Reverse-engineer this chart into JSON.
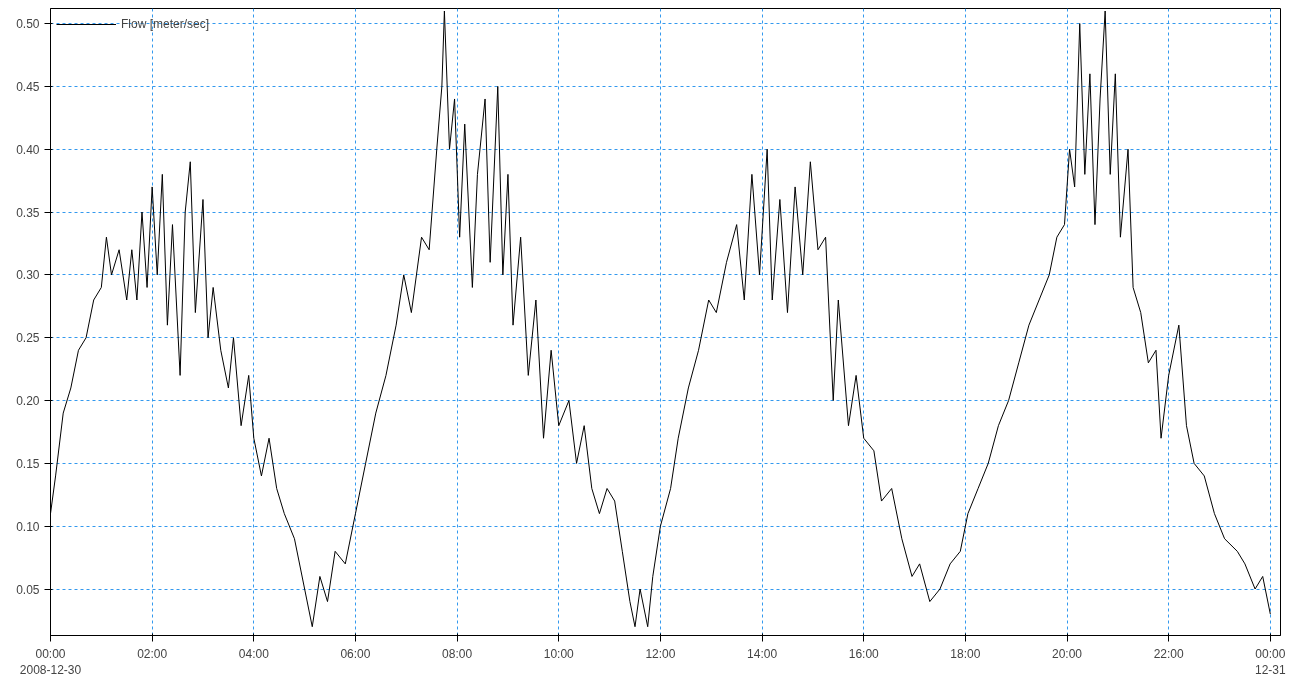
{
  "chart_data": {
    "type": "line",
    "xlim": [
      0,
      24.2
    ],
    "ylim": [
      0.013,
      0.512
    ],
    "xticks": [
      {
        "value": 0,
        "label": "00:00\n2008-12-30"
      },
      {
        "value": 2,
        "label": "02:00"
      },
      {
        "value": 4,
        "label": "04:00"
      },
      {
        "value": 6,
        "label": "06:00"
      },
      {
        "value": 8,
        "label": "08:00"
      },
      {
        "value": 10,
        "label": "10:00"
      },
      {
        "value": 12,
        "label": "12:00"
      },
      {
        "value": 14,
        "label": "14:00"
      },
      {
        "value": 16,
        "label": "16:00"
      },
      {
        "value": 18,
        "label": "18:00"
      },
      {
        "value": 20,
        "label": "20:00"
      },
      {
        "value": 22,
        "label": "22:00"
      },
      {
        "value": 24,
        "label": "00:00\n12-31"
      }
    ],
    "yticks": [
      {
        "value": 0.05,
        "label": "0.05"
      },
      {
        "value": 0.1,
        "label": "0.10"
      },
      {
        "value": 0.15,
        "label": "0.15"
      },
      {
        "value": 0.2,
        "label": "0.20"
      },
      {
        "value": 0.25,
        "label": "0.25"
      },
      {
        "value": 0.3,
        "label": "0.30"
      },
      {
        "value": 0.35,
        "label": "0.35"
      },
      {
        "value": 0.4,
        "label": "0.40"
      },
      {
        "value": 0.45,
        "label": "0.45"
      },
      {
        "value": 0.5,
        "label": "0.50"
      }
    ],
    "grid": true,
    "legend": "top left",
    "line_style": "solid",
    "marker": "none",
    "series": [
      {
        "name": "Flow [meter/sec]",
        "color": "#000000",
        "x": [
          0,
          0.1,
          0.25,
          0.4,
          0.55,
          0.7,
          0.85,
          1.0,
          1.1,
          1.2,
          1.35,
          1.5,
          1.6,
          1.7,
          1.8,
          1.9,
          2.0,
          2.1,
          2.2,
          2.3,
          2.4,
          2.55,
          2.65,
          2.75,
          2.85,
          3.0,
          3.1,
          3.2,
          3.35,
          3.5,
          3.6,
          3.75,
          3.9,
          4.0,
          4.15,
          4.3,
          4.45,
          4.6,
          4.8,
          5.0,
          5.15,
          5.3,
          5.45,
          5.6,
          5.8,
          6.0,
          6.2,
          6.4,
          6.6,
          6.8,
          6.95,
          7.1,
          7.3,
          7.45,
          7.6,
          7.7,
          7.75,
          7.85,
          7.95,
          8.05,
          8.15,
          8.3,
          8.4,
          8.55,
          8.65,
          8.8,
          8.9,
          9.0,
          9.1,
          9.25,
          9.4,
          9.55,
          9.7,
          9.85,
          10.0,
          10.2,
          10.35,
          10.5,
          10.65,
          10.8,
          10.95,
          11.1,
          11.25,
          11.4,
          11.5,
          11.6,
          11.75,
          11.85,
          12.0,
          12.2,
          12.35,
          12.55,
          12.75,
          12.95,
          13.1,
          13.3,
          13.5,
          13.65,
          13.8,
          13.95,
          14.1,
          14.2,
          14.35,
          14.5,
          14.65,
          14.8,
          14.95,
          15.1,
          15.25,
          15.4,
          15.5,
          15.7,
          15.85,
          16.0,
          16.2,
          16.35,
          16.55,
          16.75,
          16.95,
          17.1,
          17.3,
          17.5,
          17.7,
          17.9,
          18.05,
          18.25,
          18.45,
          18.65,
          18.85,
          19.05,
          19.25,
          19.45,
          19.65,
          19.8,
          19.95,
          20.05,
          20.15,
          20.25,
          20.35,
          20.45,
          20.55,
          20.65,
          20.75,
          20.85,
          20.95,
          21.05,
          21.2,
          21.3,
          21.45,
          21.6,
          21.75,
          21.85,
          22.0,
          22.2,
          22.35,
          22.5,
          22.7,
          22.9,
          23.1,
          23.35,
          23.5,
          23.7,
          23.85,
          24.0
        ],
        "values": [
          0.11,
          0.14,
          0.19,
          0.21,
          0.24,
          0.25,
          0.28,
          0.29,
          0.33,
          0.3,
          0.32,
          0.28,
          0.32,
          0.28,
          0.35,
          0.29,
          0.37,
          0.3,
          0.38,
          0.26,
          0.34,
          0.22,
          0.35,
          0.39,
          0.27,
          0.36,
          0.25,
          0.29,
          0.24,
          0.21,
          0.25,
          0.18,
          0.22,
          0.17,
          0.14,
          0.17,
          0.13,
          0.11,
          0.09,
          0.05,
          0.02,
          0.06,
          0.04,
          0.08,
          0.07,
          0.11,
          0.15,
          0.19,
          0.22,
          0.26,
          0.3,
          0.27,
          0.33,
          0.32,
          0.4,
          0.45,
          0.51,
          0.4,
          0.44,
          0.33,
          0.42,
          0.29,
          0.38,
          0.44,
          0.31,
          0.45,
          0.3,
          0.38,
          0.26,
          0.33,
          0.22,
          0.28,
          0.17,
          0.24,
          0.18,
          0.2,
          0.15,
          0.18,
          0.13,
          0.11,
          0.13,
          0.12,
          0.08,
          0.04,
          0.02,
          0.05,
          0.02,
          0.06,
          0.1,
          0.13,
          0.17,
          0.21,
          0.24,
          0.28,
          0.27,
          0.31,
          0.34,
          0.28,
          0.38,
          0.3,
          0.4,
          0.28,
          0.36,
          0.27,
          0.37,
          0.3,
          0.39,
          0.32,
          0.33,
          0.2,
          0.28,
          0.18,
          0.22,
          0.17,
          0.16,
          0.12,
          0.13,
          0.09,
          0.06,
          0.07,
          0.04,
          0.05,
          0.07,
          0.08,
          0.11,
          0.13,
          0.15,
          0.18,
          0.2,
          0.23,
          0.26,
          0.28,
          0.3,
          0.33,
          0.34,
          0.4,
          0.37,
          0.5,
          0.38,
          0.46,
          0.34,
          0.44,
          0.51,
          0.38,
          0.46,
          0.33,
          0.4,
          0.29,
          0.27,
          0.23,
          0.24,
          0.17,
          0.22,
          0.26,
          0.18,
          0.15,
          0.14,
          0.11,
          0.09,
          0.08,
          0.07,
          0.05,
          0.06,
          0.03
        ]
      }
    ]
  }
}
